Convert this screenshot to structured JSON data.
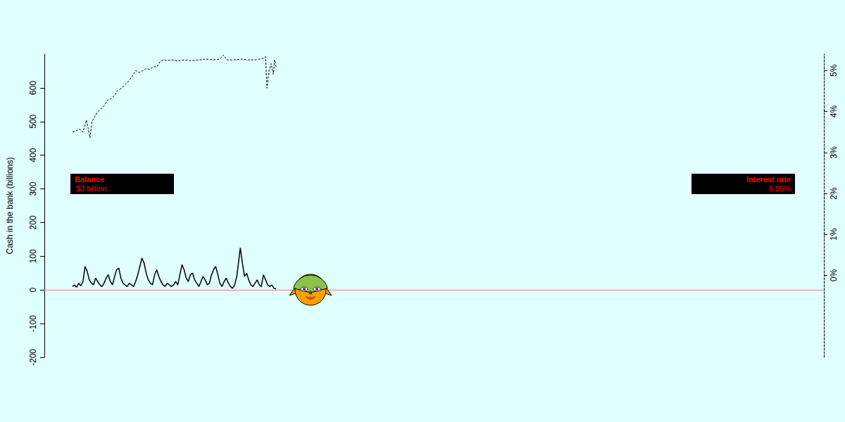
{
  "chart_data": {
    "type": "line",
    "ylabel": "Cash in the bank (billions)",
    "xlim": [
      0,
      1110
    ],
    "ylim": [
      -200,
      700
    ],
    "yticks": [
      -200,
      -100,
      0,
      100,
      200,
      300,
      400,
      500,
      600
    ],
    "y2lim": [
      -2,
      5.4
    ],
    "y2ticks": [
      {
        "value": 0,
        "label": "0%"
      },
      {
        "value": 1,
        "label": "1%"
      },
      {
        "value": 2,
        "label": "2%"
      },
      {
        "value": 3,
        "label": "3%"
      },
      {
        "value": 4,
        "label": "4%"
      },
      {
        "value": 5,
        "label": "5%"
      }
    ],
    "tick_labels": "y",
    "series": [
      {
        "color": "#000000",
        "line_style": "solid",
        "x": [
          40,
          43,
          46,
          49,
          52,
          55,
          58,
          61,
          64,
          67,
          70,
          73,
          76,
          79,
          82,
          85,
          88,
          91,
          94,
          97,
          100,
          103,
          106,
          109,
          112,
          115,
          118,
          121,
          124,
          127,
          130,
          133,
          136,
          139,
          142,
          145,
          148,
          151,
          154,
          157,
          160,
          163,
          166,
          169,
          172,
          175,
          178,
          181,
          184,
          187,
          190,
          193,
          196,
          199,
          202,
          205,
          208,
          211,
          214,
          217,
          220,
          223,
          226,
          229,
          232,
          235,
          238,
          241,
          244,
          247,
          250,
          253,
          256,
          259,
          262,
          265,
          268,
          271,
          274,
          277,
          279,
          282,
          285,
          288,
          291,
          294,
          297,
          300,
          303,
          306,
          309,
          312,
          315,
          318,
          321,
          324,
          327,
          330
        ],
        "values": [
          10,
          15,
          8,
          20,
          12,
          25,
          70,
          55,
          30,
          20,
          15,
          35,
          25,
          15,
          10,
          20,
          35,
          45,
          25,
          15,
          40,
          60,
          65,
          35,
          20,
          15,
          10,
          20,
          15,
          10,
          25,
          45,
          70,
          95,
          80,
          50,
          30,
          20,
          15,
          45,
          60,
          40,
          25,
          15,
          10,
          20,
          15,
          10,
          15,
          25,
          15,
          45,
          75,
          60,
          35,
          25,
          45,
          50,
          30,
          20,
          10,
          25,
          40,
          30,
          15,
          20,
          45,
          60,
          70,
          45,
          20,
          10,
          25,
          35,
          20,
          10,
          5,
          15,
          40,
          90,
          125,
          80,
          40,
          50,
          30,
          15,
          10,
          20,
          30,
          15,
          10,
          45,
          30,
          15,
          10,
          15,
          5,
          3
        ]
      },
      {
        "color": "#000000",
        "line_style": "dashed",
        "axis": "y2",
        "x": [
          40,
          45,
          50,
          55,
          60,
          65,
          68,
          75,
          80,
          85,
          90,
          95,
          100,
          105,
          110,
          115,
          120,
          125,
          130,
          135,
          140,
          145,
          150,
          155,
          160,
          165,
          170,
          175,
          180,
          190,
          200,
          210,
          220,
          230,
          240,
          250,
          255,
          260,
          270,
          280,
          290,
          300,
          310,
          315,
          317,
          320,
          323,
          326,
          328,
          330
        ],
        "values": [
          3.5,
          3.53,
          3.57,
          3.5,
          3.79,
          3.36,
          3.76,
          3.97,
          4.05,
          4.14,
          4.28,
          4.31,
          4.4,
          4.52,
          4.57,
          4.66,
          4.74,
          4.86,
          5.0,
          4.95,
          5.0,
          5.05,
          5.03,
          5.09,
          5.09,
          5.22,
          5.26,
          5.24,
          5.26,
          5.24,
          5.26,
          5.24,
          5.26,
          5.28,
          5.26,
          5.28,
          5.38,
          5.26,
          5.26,
          5.28,
          5.26,
          5.26,
          5.29,
          5.34,
          4.57,
          5.0,
          5.17,
          4.91,
          5.26,
          5.09
        ]
      }
    ],
    "reference_line": {
      "y": 0,
      "color": "#f08080"
    },
    "annotations": [
      {
        "title": "Balance",
        "text": "$3 billion"
      },
      {
        "title": "Interest rate",
        "text": "5.09%"
      }
    ]
  }
}
